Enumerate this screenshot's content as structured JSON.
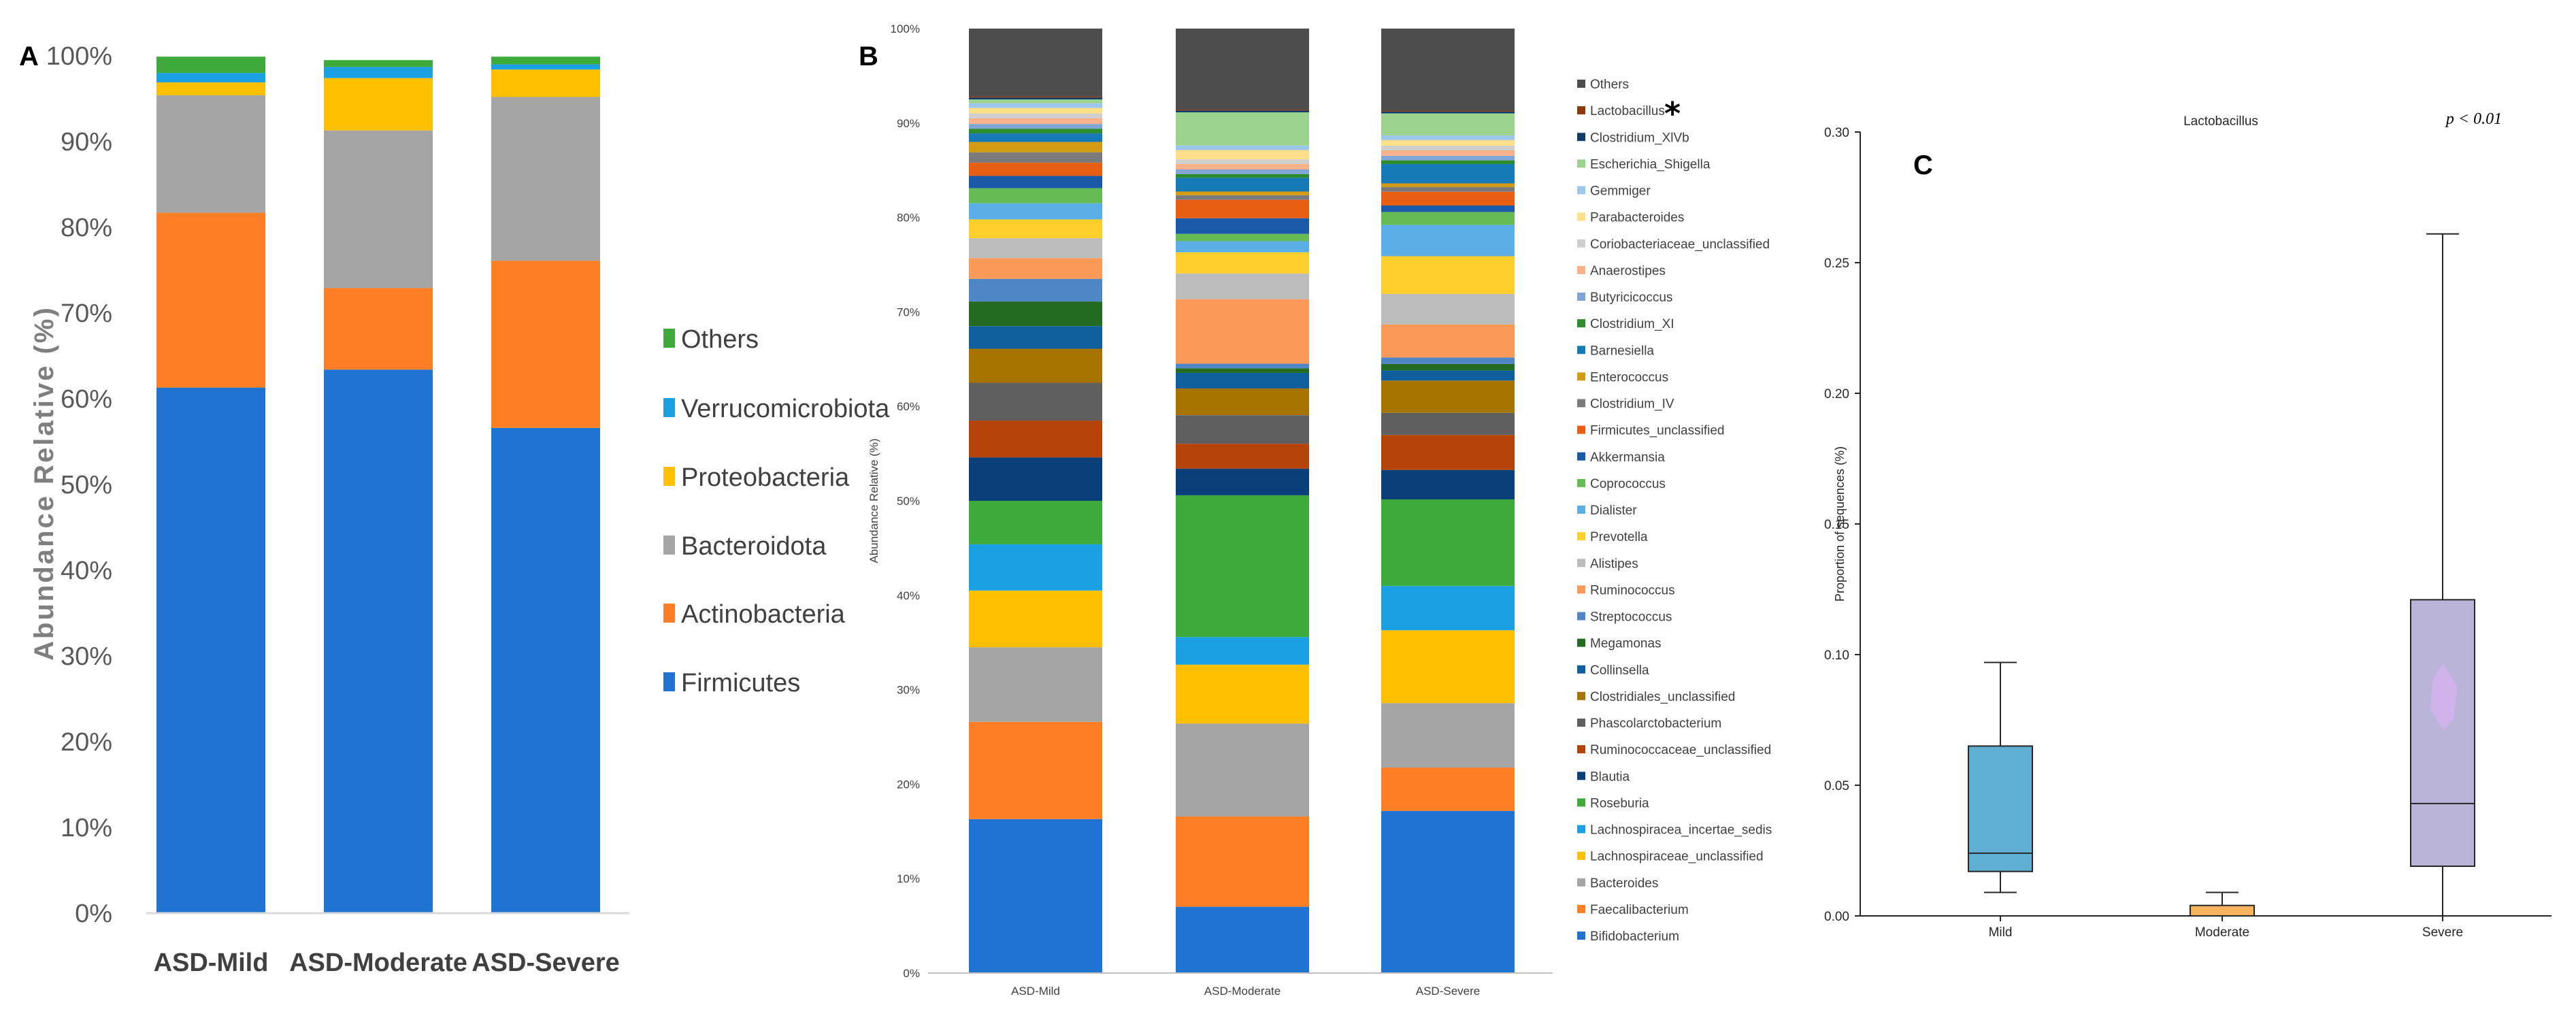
{
  "panels": {
    "a": "A",
    "b": "B",
    "c": "C"
  },
  "chart_data": [
    {
      "id": "A",
      "type": "bar",
      "stacked": true,
      "ylabel": "Abundance Relative (%)",
      "xlabel": "",
      "ylim": [
        0,
        100
      ],
      "y_ticks": [
        "0%",
        "10%",
        "20%",
        "30%",
        "40%",
        "50%",
        "60%",
        "70%",
        "80%",
        "90%",
        "100%"
      ],
      "categories": [
        "ASD-Mild",
        "ASD-Moderate",
        "ASD-Severe"
      ],
      "legend_position": "right",
      "series": [
        {
          "name": "Firmicutes",
          "color": "#1f74d1",
          "values": [
            61.3,
            63.4,
            56.6
          ]
        },
        {
          "name": "Actinobacteria",
          "color": "#fd7f25",
          "values": [
            20.4,
            9.5,
            19.5
          ]
        },
        {
          "name": "Bacteroidota",
          "color": "#a5a5a5",
          "values": [
            13.7,
            18.4,
            19.1
          ]
        },
        {
          "name": "Proteobacteria",
          "color": "#fec000",
          "values": [
            1.5,
            6.1,
            3.2
          ]
        },
        {
          "name": "Verrucomicrobiota",
          "color": "#1ba1e2",
          "values": [
            1.1,
            1.3,
            0.6
          ]
        },
        {
          "name": "Others",
          "color": "#3daa3a",
          "values": [
            1.9,
            0.8,
            0.9
          ]
        }
      ]
    },
    {
      "id": "B",
      "type": "bar",
      "stacked": true,
      "ylabel": "Abundance Relative (%)",
      "xlabel": "",
      "ylim": [
        0,
        100
      ],
      "y_ticks": [
        "0%",
        "10%",
        "20%",
        "30%",
        "40%",
        "50%",
        "60%",
        "70%",
        "80%",
        "90%",
        "100%"
      ],
      "categories": [
        "ASD-Mild",
        "ASD-Moderate",
        "ASD-Severe"
      ],
      "legend_position": "right",
      "annotation": {
        "text": "*",
        "target": "Lactobacillus"
      },
      "series": [
        {
          "name": "Bifidobacterium",
          "color": "#1f74d1",
          "values": [
            16.3,
            7.2,
            17.6
          ]
        },
        {
          "name": "Faecalibacterium",
          "color": "#fd7f25",
          "values": [
            10.3,
            9.8,
            4.7
          ]
        },
        {
          "name": "Bacteroides",
          "color": "#a5a5a5",
          "values": [
            7.9,
            10.1,
            7.0
          ]
        },
        {
          "name": "Lachnospiraceae_unclassified",
          "color": "#fec000",
          "values": [
            6.0,
            6.4,
            7.9
          ]
        },
        {
          "name": "Lachnospiracea_incertae_sedis",
          "color": "#1ba1e2",
          "values": [
            4.9,
            3.0,
            4.8
          ]
        },
        {
          "name": "Roseburia",
          "color": "#3daa3a",
          "values": [
            4.6,
            15.4,
            9.4
          ]
        },
        {
          "name": "Blautia",
          "color": "#0a3f7a",
          "values": [
            4.6,
            2.9,
            3.2
          ]
        },
        {
          "name": "Ruminococcaceae_unclassified",
          "color": "#b5440a",
          "values": [
            3.9,
            2.7,
            3.8
          ]
        },
        {
          "name": "Phascolarctobacterium",
          "color": "#5f5f5f",
          "values": [
            4.0,
            3.1,
            2.4
          ]
        },
        {
          "name": "Clostridiales_unclassified",
          "color": "#a87400",
          "values": [
            3.6,
            2.9,
            3.5
          ]
        },
        {
          "name": "Collinsella",
          "color": "#0f5f9c",
          "values": [
            2.4,
            1.7,
            1.1
          ]
        },
        {
          "name": "Megamonas",
          "color": "#246b22",
          "values": [
            2.6,
            0.5,
            0.7
          ]
        },
        {
          "name": "Streptococcus",
          "color": "#4f86c6",
          "values": [
            2.4,
            0.5,
            0.7
          ]
        },
        {
          "name": "Ruminococcus",
          "color": "#fb9a58",
          "values": [
            2.2,
            7.0,
            3.6
          ]
        },
        {
          "name": "Alistipes",
          "color": "#bcbcbc",
          "values": [
            2.1,
            2.8,
            3.3
          ]
        },
        {
          "name": "Prevotella",
          "color": "#ffd02b",
          "values": [
            2.0,
            2.3,
            4.1
          ]
        },
        {
          "name": "Dialister",
          "color": "#5aaee6",
          "values": [
            1.7,
            1.2,
            3.4
          ]
        },
        {
          "name": "Coprococcus",
          "color": "#66bb55",
          "values": [
            1.6,
            0.8,
            1.4
          ]
        },
        {
          "name": "Akkermansia",
          "color": "#1a5aa8",
          "values": [
            1.3,
            1.7,
            0.7
          ]
        },
        {
          "name": "Firmicutes_unclassified",
          "color": "#e85e12",
          "values": [
            1.4,
            2.0,
            1.5
          ]
        },
        {
          "name": "Clostridium_IV",
          "color": "#7a7a7a",
          "values": [
            1.1,
            0.5,
            0.5
          ]
        },
        {
          "name": "Enterococcus",
          "color": "#d39b13",
          "values": [
            1.1,
            0.4,
            0.4
          ]
        },
        {
          "name": "Barnesiella",
          "color": "#157ab5",
          "values": [
            0.9,
            1.5,
            2.1
          ]
        },
        {
          "name": "Clostridium_XI",
          "color": "#2e8b2e",
          "values": [
            0.5,
            0.4,
            0.4
          ]
        },
        {
          "name": "Butyricicoccus",
          "color": "#7fa6d6",
          "values": [
            0.5,
            0.5,
            0.5
          ]
        },
        {
          "name": "Anaerostipes",
          "color": "#fbb28a",
          "values": [
            0.6,
            0.6,
            0.6
          ]
        },
        {
          "name": "Coriobacteriaceae_unclassified",
          "color": "#cfcfcf",
          "values": [
            0.5,
            0.5,
            0.5
          ]
        },
        {
          "name": "Parabacteroides",
          "color": "#ffe08a",
          "values": [
            0.6,
            1.0,
            0.6
          ]
        },
        {
          "name": "Gemmiger",
          "color": "#9cc6ea",
          "values": [
            0.5,
            0.5,
            0.5
          ]
        },
        {
          "name": "Escherichia_Shigella",
          "color": "#9bd38f",
          "values": [
            0.4,
            3.6,
            2.4
          ]
        },
        {
          "name": "Clostridium_XlVb",
          "color": "#103a6a",
          "values": [
            0.2,
            0.2,
            0.2
          ]
        },
        {
          "name": "Lactobacillus",
          "color": "#8c3a0c",
          "values": [
            0.1,
            0.1,
            0.1
          ]
        },
        {
          "name": "Others",
          "color": "#4d4d4d",
          "values": [
            7.2,
            8.8,
            8.9
          ]
        }
      ]
    },
    {
      "id": "C",
      "type": "boxplot",
      "title": "Lactobacillus",
      "annotation": "p < 0.01",
      "ylabel": "Proportion of sequences (%)",
      "xlabel": "",
      "ylim": [
        0,
        0.3
      ],
      "y_ticks": [
        "0.00",
        "0.05",
        "0.10",
        "0.15",
        "0.20",
        "0.25",
        "0.30"
      ],
      "categories": [
        "Mild",
        "Moderate",
        "Severe"
      ],
      "boxes": [
        {
          "name": "Mild",
          "color": "#5fafd4",
          "min": 0.009,
          "q1": 0.017,
          "median": 0.024,
          "q3": 0.065,
          "max": 0.097
        },
        {
          "name": "Moderate",
          "color": "#f6b45e",
          "min": 0.0,
          "q1": 0.0,
          "median": 0.0,
          "q3": 0.004,
          "max": 0.009
        },
        {
          "name": "Severe",
          "color": "#bbb4d9",
          "min": 0.0,
          "q1": 0.019,
          "median": 0.043,
          "q3": 0.121,
          "max": 0.261,
          "mean": 0.083
        }
      ]
    }
  ]
}
